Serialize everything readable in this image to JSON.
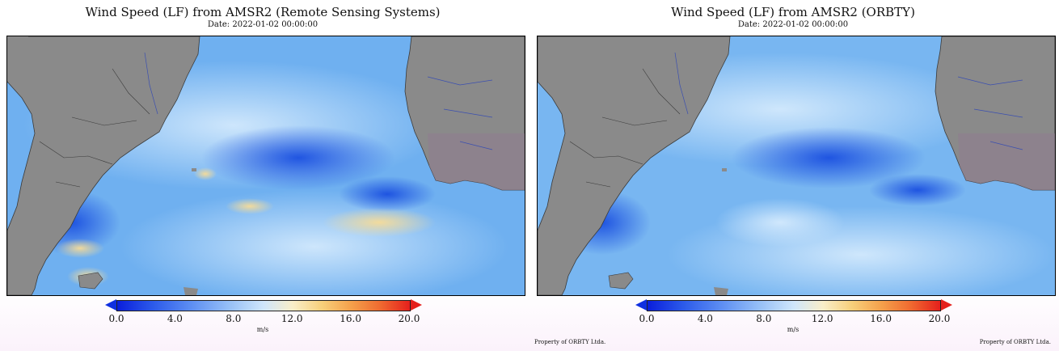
{
  "panels": [
    {
      "title": "Wind Speed (LF) from AMSR2 (Remote Sensing Systems)",
      "date": "Date: 2022-01-02 00:00:00",
      "colorbar": {
        "ticks": [
          "0.0",
          "4.0",
          "8.0",
          "12.0",
          "16.0",
          "20.0"
        ],
        "unit": "m/s",
        "min": 0,
        "max": 20
      },
      "property_left": "",
      "property_right": ""
    },
    {
      "title": "Wind Speed (LF) from AMSR2 (ORBTY)",
      "date": "Date: 2022-01-02 00:00:00",
      "colorbar": {
        "ticks": [
          "0.0",
          "4.0",
          "8.0",
          "12.0",
          "16.0",
          "20.0"
        ],
        "unit": "m/s",
        "min": 0,
        "max": 20
      },
      "property_left": "Property of ORBTY Ltda.",
      "property_right": "Property of ORBTY Ltda."
    }
  ],
  "colors": {
    "land": "#8a8a8a",
    "ocean_base": "#6fb0f0",
    "low_wind": "#1f55e0",
    "high_wind": "#f6dc9a",
    "colorbar_min": "#0a1edc",
    "colorbar_max": "#e5201c"
  }
}
